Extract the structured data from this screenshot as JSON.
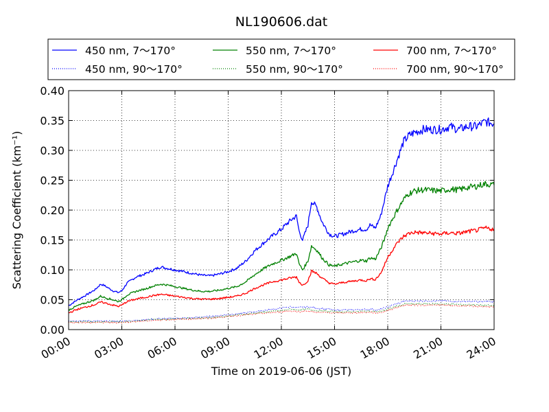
{
  "chart_data": {
    "type": "line",
    "title": "NL190606.dat",
    "xlabel": "Time on 2019-06-06 (JST)",
    "ylabel": "Scattering Coefficient (km⁻¹)",
    "xlim": [
      0,
      24
    ],
    "ylim": [
      0.0,
      0.4
    ],
    "x_tick_labels": [
      "00:00",
      "03:00",
      "06:00",
      "09:00",
      "12:00",
      "15:00",
      "18:00",
      "21:00",
      "24:00"
    ],
    "y_tick_labels": [
      "0.00",
      "0.05",
      "0.10",
      "0.15",
      "0.20",
      "0.25",
      "0.30",
      "0.35",
      "0.40"
    ],
    "grid": true,
    "legend_position": "top, outside plot",
    "series": [
      {
        "name": "450 nm, 7～170°",
        "color": "#0000ff",
        "style": "solid",
        "x": [
          0,
          0.5,
          1,
          1.5,
          1.8,
          2,
          2.5,
          2.8,
          3,
          3.3,
          3.8,
          4.3,
          4.8,
          5.2,
          5.5,
          6,
          6.5,
          7,
          7.5,
          8,
          8.5,
          9,
          9.5,
          10,
          10.5,
          11,
          11.5,
          12,
          12.3,
          12.6,
          12.85,
          13,
          13.2,
          13.5,
          13.7,
          14,
          14.3,
          14.7,
          15,
          15.5,
          16,
          16.5,
          16.8,
          17,
          17.3,
          17.6,
          17.8,
          18,
          18.3,
          18.6,
          18.9,
          19.2,
          19.5,
          20,
          20.5,
          21,
          21.5,
          22,
          22.5,
          23,
          23.5,
          24
        ],
        "y": [
          0.04,
          0.05,
          0.058,
          0.067,
          0.076,
          0.074,
          0.065,
          0.062,
          0.065,
          0.078,
          0.088,
          0.093,
          0.1,
          0.105,
          0.103,
          0.1,
          0.097,
          0.094,
          0.091,
          0.09,
          0.093,
          0.097,
          0.103,
          0.115,
          0.132,
          0.145,
          0.157,
          0.168,
          0.177,
          0.185,
          0.19,
          0.165,
          0.15,
          0.175,
          0.215,
          0.205,
          0.18,
          0.16,
          0.156,
          0.16,
          0.165,
          0.168,
          0.168,
          0.175,
          0.17,
          0.19,
          0.215,
          0.24,
          0.265,
          0.29,
          0.315,
          0.325,
          0.33,
          0.335,
          0.335,
          0.335,
          0.34,
          0.335,
          0.34,
          0.34,
          0.348,
          0.345
        ]
      },
      {
        "name": "450 nm, 90～170°",
        "color": "#0000ff",
        "style": "dotted",
        "x": [
          0,
          2,
          3,
          4,
          5,
          6,
          7,
          8,
          9,
          10,
          11,
          12,
          12.5,
          13,
          13.5,
          14,
          15,
          16,
          17,
          17.5,
          18,
          18.5,
          19,
          20,
          21,
          22,
          23,
          24
        ],
        "y": [
          0.015,
          0.014,
          0.014,
          0.016,
          0.018,
          0.019,
          0.02,
          0.022,
          0.025,
          0.028,
          0.032,
          0.036,
          0.038,
          0.037,
          0.038,
          0.036,
          0.033,
          0.033,
          0.034,
          0.033,
          0.038,
          0.043,
          0.048,
          0.048,
          0.048,
          0.047,
          0.047,
          0.047
        ]
      },
      {
        "name": "550 nm, 7～170°",
        "color": "#008000",
        "style": "solid",
        "x": [
          0,
          0.5,
          1,
          1.5,
          1.8,
          2,
          2.5,
          2.8,
          3,
          3.3,
          3.8,
          4.3,
          4.8,
          5.2,
          5.5,
          6,
          6.5,
          7,
          7.5,
          8,
          8.5,
          9,
          9.5,
          10,
          10.5,
          11,
          11.5,
          12,
          12.3,
          12.6,
          12.85,
          13,
          13.2,
          13.5,
          13.7,
          14,
          14.3,
          14.7,
          15,
          15.5,
          16,
          16.5,
          16.8,
          17,
          17.3,
          17.6,
          17.8,
          18,
          18.3,
          18.6,
          18.9,
          19.2,
          19.5,
          20,
          20.5,
          21,
          21.5,
          22,
          22.5,
          23,
          23.5,
          24
        ],
        "y": [
          0.033,
          0.04,
          0.045,
          0.05,
          0.056,
          0.054,
          0.05,
          0.047,
          0.05,
          0.058,
          0.064,
          0.068,
          0.073,
          0.076,
          0.075,
          0.072,
          0.069,
          0.066,
          0.064,
          0.064,
          0.066,
          0.069,
          0.072,
          0.08,
          0.092,
          0.102,
          0.11,
          0.116,
          0.12,
          0.124,
          0.128,
          0.11,
          0.1,
          0.115,
          0.14,
          0.133,
          0.12,
          0.108,
          0.106,
          0.11,
          0.113,
          0.116,
          0.115,
          0.12,
          0.118,
          0.135,
          0.15,
          0.17,
          0.187,
          0.203,
          0.218,
          0.228,
          0.232,
          0.234,
          0.233,
          0.232,
          0.235,
          0.234,
          0.238,
          0.24,
          0.244,
          0.242
        ]
      },
      {
        "name": "550 nm, 90～170°",
        "color": "#008000",
        "style": "dotted",
        "x": [
          0,
          2,
          3,
          4,
          5,
          6,
          7,
          8,
          9,
          10,
          11,
          12,
          12.5,
          13,
          13.5,
          14,
          15,
          16,
          17,
          17.5,
          18,
          18.5,
          19,
          20,
          21,
          22,
          23,
          24
        ],
        "y": [
          0.013,
          0.013,
          0.013,
          0.015,
          0.017,
          0.018,
          0.019,
          0.02,
          0.023,
          0.026,
          0.029,
          0.032,
          0.034,
          0.033,
          0.034,
          0.032,
          0.03,
          0.03,
          0.031,
          0.03,
          0.034,
          0.039,
          0.043,
          0.043,
          0.043,
          0.042,
          0.041,
          0.04
        ]
      },
      {
        "name": "700 nm, 7～170°",
        "color": "#ff0000",
        "style": "solid",
        "x": [
          0,
          0.5,
          1,
          1.5,
          1.8,
          2,
          2.5,
          2.8,
          3,
          3.3,
          3.8,
          4.3,
          4.8,
          5.2,
          5.5,
          6,
          6.5,
          7,
          7.5,
          8,
          8.5,
          9,
          9.5,
          10,
          10.5,
          11,
          11.5,
          12,
          12.3,
          12.6,
          12.85,
          13,
          13.2,
          13.5,
          13.7,
          14,
          14.3,
          14.7,
          15,
          15.5,
          16,
          16.5,
          16.8,
          17,
          17.3,
          17.6,
          17.8,
          18,
          18.3,
          18.6,
          18.9,
          19.2,
          19.5,
          20,
          20.5,
          21,
          21.5,
          22,
          22.5,
          23,
          23.5,
          24
        ],
        "y": [
          0.028,
          0.034,
          0.038,
          0.042,
          0.046,
          0.045,
          0.041,
          0.039,
          0.041,
          0.047,
          0.051,
          0.054,
          0.057,
          0.059,
          0.058,
          0.056,
          0.054,
          0.052,
          0.051,
          0.051,
          0.052,
          0.054,
          0.056,
          0.061,
          0.069,
          0.075,
          0.08,
          0.083,
          0.085,
          0.087,
          0.088,
          0.08,
          0.074,
          0.082,
          0.098,
          0.094,
          0.086,
          0.078,
          0.076,
          0.079,
          0.081,
          0.083,
          0.082,
          0.085,
          0.084,
          0.094,
          0.107,
          0.121,
          0.135,
          0.147,
          0.156,
          0.161,
          0.163,
          0.162,
          0.161,
          0.16,
          0.162,
          0.161,
          0.164,
          0.166,
          0.17,
          0.168
        ]
      },
      {
        "name": "700 nm, 90～170°",
        "color": "#ff0000",
        "style": "dotted",
        "x": [
          0,
          2,
          3,
          4,
          5,
          6,
          7,
          8,
          9,
          10,
          11,
          12,
          12.5,
          13,
          13.5,
          14,
          15,
          16,
          17,
          17.5,
          18,
          18.5,
          19,
          20,
          21,
          22,
          23,
          24
        ],
        "y": [
          0.012,
          0.012,
          0.012,
          0.014,
          0.016,
          0.017,
          0.018,
          0.019,
          0.022,
          0.025,
          0.027,
          0.03,
          0.031,
          0.03,
          0.031,
          0.029,
          0.028,
          0.028,
          0.029,
          0.028,
          0.032,
          0.037,
          0.041,
          0.041,
          0.041,
          0.04,
          0.039,
          0.038
        ]
      }
    ]
  }
}
